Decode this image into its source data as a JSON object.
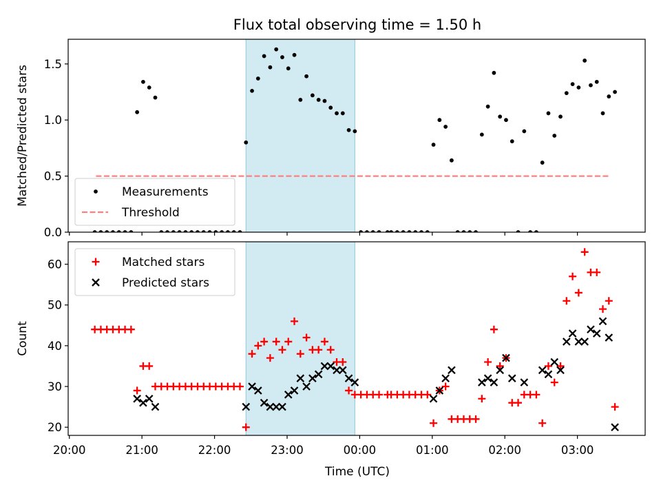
{
  "chart_data": {
    "title": "Flux total observing time = 1.50 h",
    "x_axis": {
      "label": "Time (UTC)",
      "unit": "hours since 20:00 UTC on the chart date",
      "range": [
        "19:59",
        "03:56"
      ],
      "ticks": [
        "20:00",
        "21:00",
        "22:00",
        "23:00",
        "00:00",
        "01:00",
        "02:00",
        "03:00"
      ]
    },
    "highlight_band": {
      "start": "22:26",
      "end": "23:56",
      "color": "#add8e6"
    },
    "panels": [
      {
        "type": "scatter",
        "ylabel": "Matched/Predicted stars",
        "ylim": [
          0,
          1.72
        ],
        "yticks": [
          "0.0",
          "0.5",
          "1.0",
          "1.5"
        ],
        "legend": {
          "position": "lower-left",
          "entries": [
            "Measurements",
            "Threshold"
          ]
        },
        "threshold": {
          "name": "Threshold",
          "value": 0.5,
          "x_range": [
            "20:22",
            "03:27"
          ],
          "color": "#ff7f7f",
          "style": "dashed"
        },
        "series": [
          {
            "name": "Measurements",
            "color": "#000000",
            "marker": "dot",
            "points": [
              [
                "20:21",
                0
              ],
              [
                "20:26",
                0
              ],
              [
                "20:31",
                0
              ],
              [
                "20:36",
                0
              ],
              [
                "20:41",
                0
              ],
              [
                "20:46",
                0
              ],
              [
                "20:51",
                0
              ],
              [
                "20:56",
                1.07
              ],
              [
                "21:01",
                1.34
              ],
              [
                "21:06",
                1.29
              ],
              [
                "21:11",
                1.2
              ],
              [
                "21:16",
                0
              ],
              [
                "21:21",
                0
              ],
              [
                "21:26",
                0
              ],
              [
                "21:31",
                0
              ],
              [
                "21:36",
                0
              ],
              [
                "21:41",
                0
              ],
              [
                "21:46",
                0
              ],
              [
                "21:51",
                0
              ],
              [
                "21:56",
                0
              ],
              [
                "22:01",
                0
              ],
              [
                "22:06",
                0
              ],
              [
                "22:11",
                0
              ],
              [
                "22:16",
                0
              ],
              [
                "22:21",
                0
              ],
              [
                "22:26",
                0.8
              ],
              [
                "22:31",
                1.26
              ],
              [
                "22:36",
                1.37
              ],
              [
                "22:41",
                1.57
              ],
              [
                "22:46",
                1.47
              ],
              [
                "22:51",
                1.63
              ],
              [
                "22:56",
                1.56
              ],
              [
                "23:01",
                1.46
              ],
              [
                "23:06",
                1.58
              ],
              [
                "23:11",
                1.18
              ],
              [
                "23:16",
                1.39
              ],
              [
                "23:21",
                1.22
              ],
              [
                "23:26",
                1.18
              ],
              [
                "23:31",
                1.17
              ],
              [
                "23:36",
                1.11
              ],
              [
                "23:41",
                1.06
              ],
              [
                "23:46",
                1.06
              ],
              [
                "23:51",
                0.91
              ],
              [
                "23:56",
                0.9
              ],
              [
                "00:01",
                0
              ],
              [
                "00:06",
                0
              ],
              [
                "00:11",
                0
              ],
              [
                "00:16",
                0
              ],
              [
                "00:23",
                0
              ],
              [
                "00:26",
                0
              ],
              [
                "00:31",
                0
              ],
              [
                "00:36",
                0
              ],
              [
                "00:41",
                0
              ],
              [
                "00:46",
                0
              ],
              [
                "00:51",
                0
              ],
              [
                "00:56",
                0
              ],
              [
                "01:01",
                0.78
              ],
              [
                "01:06",
                1.0
              ],
              [
                "01:11",
                0.94
              ],
              [
                "01:16",
                0.64
              ],
              [
                "01:21",
                0
              ],
              [
                "01:26",
                0
              ],
              [
                "01:31",
                0
              ],
              [
                "01:36",
                0
              ],
              [
                "01:41",
                0.87
              ],
              [
                "01:46",
                1.12
              ],
              [
                "01:51",
                1.42
              ],
              [
                "01:56",
                1.03
              ],
              [
                "02:01",
                1.0
              ],
              [
                "02:06",
                0.81
              ],
              [
                "02:11",
                0
              ],
              [
                "02:16",
                0.9
              ],
              [
                "02:21",
                0
              ],
              [
                "02:26",
                0
              ],
              [
                "02:31",
                0.62
              ],
              [
                "02:36",
                1.06
              ],
              [
                "02:41",
                0.86
              ],
              [
                "02:46",
                1.03
              ],
              [
                "02:51",
                1.24
              ],
              [
                "02:56",
                1.32
              ],
              [
                "03:01",
                1.29
              ],
              [
                "03:06",
                1.53
              ],
              [
                "03:11",
                1.31
              ],
              [
                "03:16",
                1.34
              ],
              [
                "03:21",
                1.06
              ],
              [
                "03:26",
                1.21
              ],
              [
                "03:31",
                1.25
              ]
            ]
          }
        ]
      },
      {
        "type": "scatter",
        "ylabel": "Count",
        "ylim": [
          18,
          65.5
        ],
        "yticks": [
          "20",
          "30",
          "40",
          "50",
          "60"
        ],
        "legend": {
          "position": "top-left",
          "entries": [
            "Matched stars",
            "Predicted stars"
          ]
        },
        "series": [
          {
            "name": "Matched stars",
            "color": "#ff0000",
            "marker": "plus",
            "points": [
              [
                "20:21",
                44
              ],
              [
                "20:26",
                44
              ],
              [
                "20:31",
                44
              ],
              [
                "20:36",
                44
              ],
              [
                "20:41",
                44
              ],
              [
                "20:46",
                44
              ],
              [
                "20:51",
                44
              ],
              [
                "20:56",
                29
              ],
              [
                "21:01",
                35
              ],
              [
                "21:06",
                35
              ],
              [
                "21:11",
                30
              ],
              [
                "21:16",
                30
              ],
              [
                "21:21",
                30
              ],
              [
                "21:26",
                30
              ],
              [
                "21:31",
                30
              ],
              [
                "21:36",
                30
              ],
              [
                "21:41",
                30
              ],
              [
                "21:46",
                30
              ],
              [
                "21:51",
                30
              ],
              [
                "21:56",
                30
              ],
              [
                "22:01",
                30
              ],
              [
                "22:06",
                30
              ],
              [
                "22:11",
                30
              ],
              [
                "22:16",
                30
              ],
              [
                "22:21",
                30
              ],
              [
                "22:26",
                20
              ],
              [
                "22:31",
                38
              ],
              [
                "22:36",
                40
              ],
              [
                "22:41",
                41
              ],
              [
                "22:46",
                37
              ],
              [
                "22:51",
                41
              ],
              [
                "22:56",
                39
              ],
              [
                "23:01",
                41
              ],
              [
                "23:06",
                46
              ],
              [
                "23:11",
                38
              ],
              [
                "23:16",
                42
              ],
              [
                "23:21",
                39
              ],
              [
                "23:26",
                39
              ],
              [
                "23:31",
                41
              ],
              [
                "23:36",
                39
              ],
              [
                "23:41",
                36
              ],
              [
                "23:46",
                36
              ],
              [
                "23:51",
                29
              ],
              [
                "23:56",
                28
              ],
              [
                "00:01",
                28
              ],
              [
                "00:06",
                28
              ],
              [
                "00:11",
                28
              ],
              [
                "00:16",
                28
              ],
              [
                "00:23",
                28
              ],
              [
                "00:26",
                28
              ],
              [
                "00:31",
                28
              ],
              [
                "00:36",
                28
              ],
              [
                "00:41",
                28
              ],
              [
                "00:46",
                28
              ],
              [
                "00:51",
                28
              ],
              [
                "00:56",
                28
              ],
              [
                "01:01",
                21
              ],
              [
                "01:06",
                29
              ],
              [
                "01:11",
                30
              ],
              [
                "01:16",
                22
              ],
              [
                "01:21",
                22
              ],
              [
                "01:26",
                22
              ],
              [
                "01:31",
                22
              ],
              [
                "01:36",
                22
              ],
              [
                "01:41",
                27
              ],
              [
                "01:46",
                36
              ],
              [
                "01:51",
                44
              ],
              [
                "01:56",
                35
              ],
              [
                "02:01",
                37
              ],
              [
                "02:06",
                26
              ],
              [
                "02:11",
                26
              ],
              [
                "02:16",
                28
              ],
              [
                "02:21",
                28
              ],
              [
                "02:26",
                28
              ],
              [
                "02:31",
                21
              ],
              [
                "02:36",
                35
              ],
              [
                "02:41",
                31
              ],
              [
                "02:46",
                35
              ],
              [
                "02:51",
                51
              ],
              [
                "02:56",
                57
              ],
              [
                "03:01",
                53
              ],
              [
                "03:06",
                63
              ],
              [
                "03:11",
                58
              ],
              [
                "03:16",
                58
              ],
              [
                "03:21",
                49
              ],
              [
                "03:26",
                51
              ],
              [
                "03:31",
                25
              ]
            ]
          },
          {
            "name": "Predicted stars",
            "color": "#000000",
            "marker": "x",
            "points": [
              [
                "20:56",
                27
              ],
              [
                "21:01",
                26
              ],
              [
                "21:06",
                27
              ],
              [
                "21:11",
                25
              ],
              [
                "22:26",
                25
              ],
              [
                "22:31",
                30
              ],
              [
                "22:36",
                29
              ],
              [
                "22:41",
                26
              ],
              [
                "22:46",
                25
              ],
              [
                "22:51",
                25
              ],
              [
                "22:56",
                25
              ],
              [
                "23:01",
                28
              ],
              [
                "23:06",
                29
              ],
              [
                "23:11",
                32
              ],
              [
                "23:16",
                30
              ],
              [
                "23:21",
                32
              ],
              [
                "23:26",
                33
              ],
              [
                "23:31",
                35
              ],
              [
                "23:36",
                35
              ],
              [
                "23:41",
                34
              ],
              [
                "23:46",
                34
              ],
              [
                "23:51",
                32
              ],
              [
                "23:56",
                31
              ],
              [
                "01:01",
                27
              ],
              [
                "01:06",
                29
              ],
              [
                "01:11",
                32
              ],
              [
                "01:16",
                34
              ],
              [
                "01:41",
                31
              ],
              [
                "01:46",
                32
              ],
              [
                "01:51",
                31
              ],
              [
                "01:56",
                34
              ],
              [
                "02:01",
                37
              ],
              [
                "02:06",
                32
              ],
              [
                "02:16",
                31
              ],
              [
                "02:31",
                34
              ],
              [
                "02:36",
                33
              ],
              [
                "02:41",
                36
              ],
              [
                "02:46",
                34
              ],
              [
                "02:51",
                41
              ],
              [
                "02:56",
                43
              ],
              [
                "03:01",
                41
              ],
              [
                "03:06",
                41
              ],
              [
                "03:11",
                44
              ],
              [
                "03:16",
                43
              ],
              [
                "03:21",
                46
              ],
              [
                "03:26",
                42
              ],
              [
                "03:31",
                20
              ]
            ]
          }
        ]
      }
    ]
  }
}
